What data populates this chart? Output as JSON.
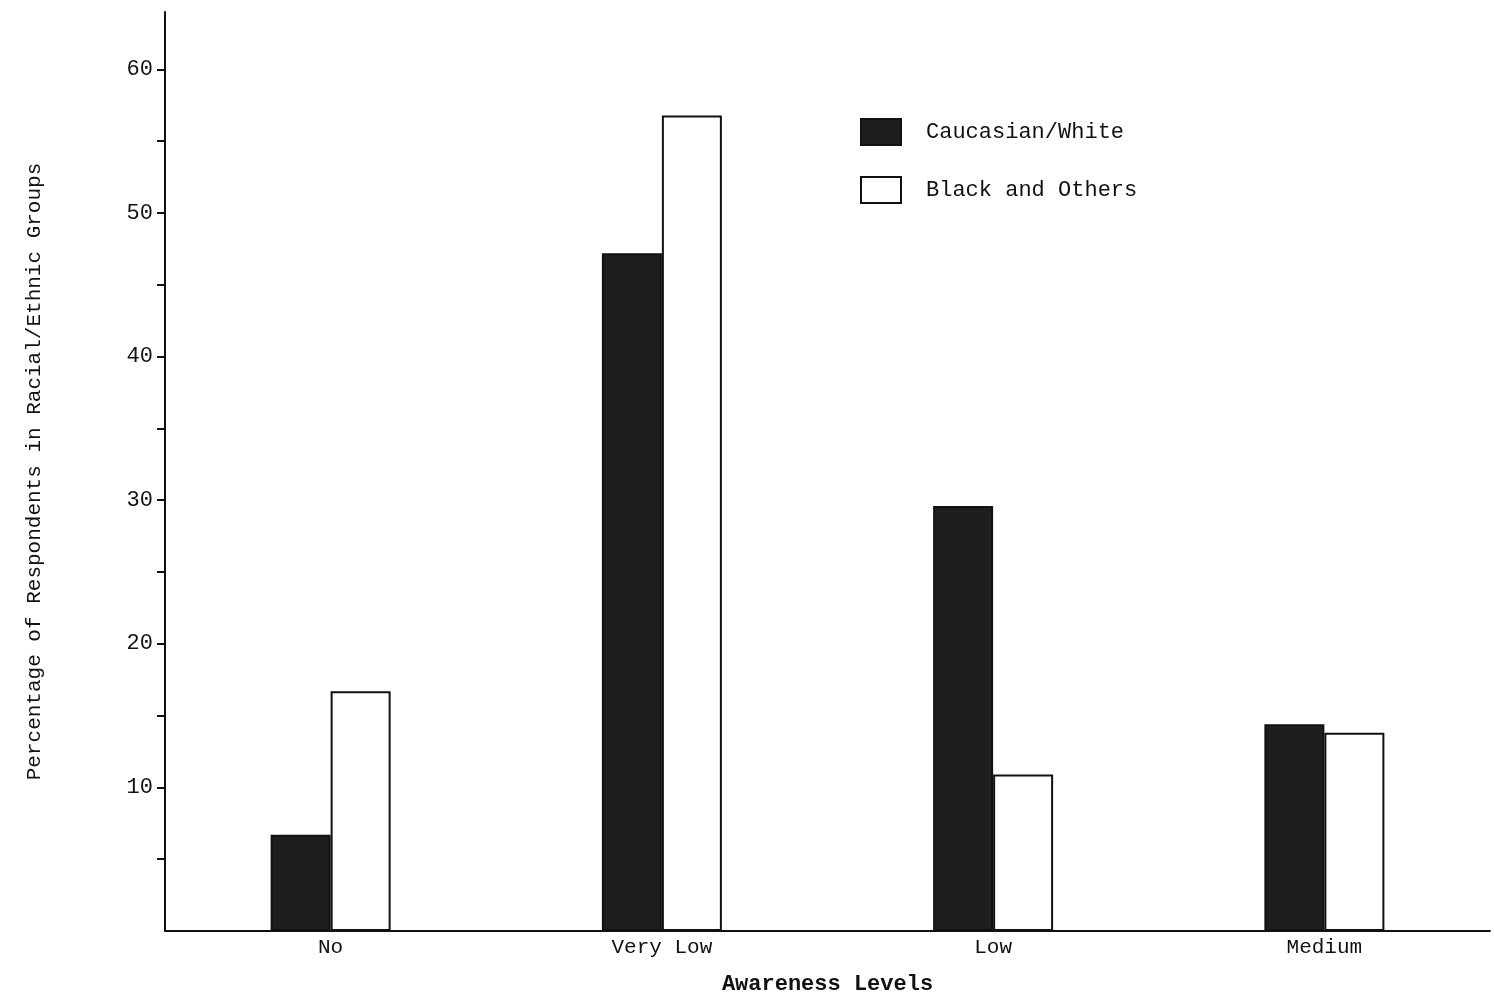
{
  "chart_data": {
    "type": "bar",
    "xlabel": "Awareness Levels",
    "ylabel": "Percentage of Respondents in Racial/Ethnic Groups",
    "categories": [
      "No",
      "Very Low",
      "Low",
      "Medium"
    ],
    "series": [
      {
        "name": "Caucasian/White",
        "color": "#1e1e1e",
        "values": [
          6.7,
          47.2,
          29.6,
          14.4
        ]
      },
      {
        "name": "Black and Others",
        "color": "#ffffff",
        "values": [
          16.7,
          56.8,
          10.9,
          13.8
        ]
      }
    ],
    "ylim": [
      0,
      64
    ],
    "yticks": [
      {
        "value": 5,
        "label": null
      },
      10,
      {
        "value": 15,
        "label": null
      },
      20,
      {
        "value": 25,
        "label": null
      },
      30,
      {
        "value": 35,
        "label": null
      },
      40,
      {
        "value": 45,
        "label": null
      },
      50,
      {
        "value": 55,
        "label": null
      },
      60
    ],
    "grid": false,
    "legend": "top right"
  }
}
